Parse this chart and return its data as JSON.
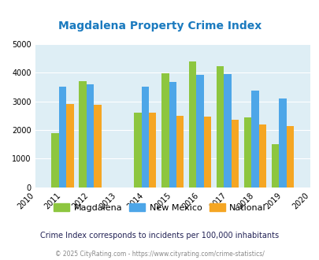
{
  "title": "Magdalena Property Crime Index",
  "years": [
    2010,
    2011,
    2012,
    2013,
    2014,
    2015,
    2016,
    2017,
    2018,
    2019,
    2020
  ],
  "data_years": [
    2011,
    2012,
    2014,
    2015,
    2016,
    2017,
    2018,
    2019
  ],
  "magdalena": [
    1900,
    3720,
    2600,
    3970,
    4400,
    4230,
    2450,
    1500
  ],
  "new_mexico": [
    3520,
    3600,
    3520,
    3680,
    3930,
    3960,
    3380,
    3100
  ],
  "national": [
    2900,
    2870,
    2600,
    2490,
    2460,
    2360,
    2190,
    2130
  ],
  "magdalena_color": "#8dc63f",
  "new_mexico_color": "#4da6e8",
  "national_color": "#f5a623",
  "background_color": "#deeef5",
  "ylim": [
    0,
    5000
  ],
  "yticks": [
    0,
    1000,
    2000,
    3000,
    4000,
    5000
  ],
  "title_color": "#1a7abf",
  "subtitle": "Crime Index corresponds to incidents per 100,000 inhabitants",
  "footer": "© 2025 CityRating.com - https://www.cityrating.com/crime-statistics/",
  "bar_width": 0.27,
  "legend_labels": [
    "Magdalena",
    "New Mexico",
    "National"
  ]
}
